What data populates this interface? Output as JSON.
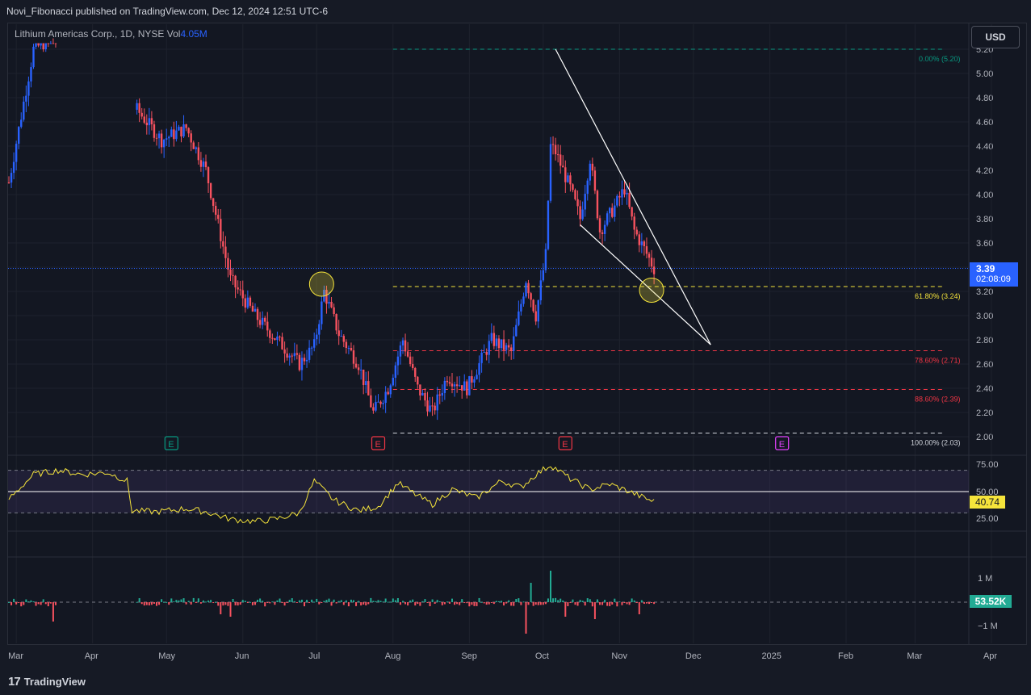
{
  "header": {
    "published": "Novi_Fibonacci published on TradingView.com, Dec 12, 2024 12:51 UTC-6"
  },
  "legend": {
    "symbol": "Lithium Americas Corp., 1D, NYSE",
    "vol_label": "Vol",
    "vol_value": "4.05M"
  },
  "currency_button": "USD",
  "price_tag": {
    "price": "3.39",
    "countdown": "02:08:09"
  },
  "rsi_tag": "40.74",
  "volume_tag": "53.52K",
  "brand": {
    "logo_text": "TradingView",
    "logo_mark": "17"
  },
  "colors": {
    "up": "#2962ff",
    "down": "#f7525f",
    "rsi": "#f5e43b",
    "vol_up": "#22ab94",
    "fib_top": "#089981",
    "fib_mid": "#f5e43b",
    "fib_red": "#f23645",
    "fib_bottom": "#d1d4dc"
  },
  "chart_data": [
    {
      "type": "candlestick",
      "title": "Lithium Americas Corp., 1D, NYSE",
      "ylim": [
        1.9,
        5.25
      ],
      "y_ticks": [
        "5.20",
        "5.00",
        "4.80",
        "4.60",
        "4.40",
        "4.20",
        "4.00",
        "3.80",
        "3.60",
        "3.40",
        "3.20",
        "3.00",
        "2.80",
        "2.60",
        "2.40",
        "2.20",
        "2.00"
      ],
      "x_ticks": [
        "Mar",
        "Apr",
        "May",
        "Jun",
        "Jul",
        "Aug",
        "Sep",
        "Oct",
        "Nov",
        "Dec",
        "2025",
        "Feb",
        "Mar",
        "Apr"
      ],
      "price_path": [
        {
          "day": 0,
          "price": 4.1
        },
        {
          "day": 10,
          "price": 5.2
        },
        {
          "day": 18,
          "price": 5.3
        },
        {
          "day": 52,
          "price": 4.7
        },
        {
          "day": 62,
          "price": 4.45
        },
        {
          "day": 72,
          "price": 4.55
        },
        {
          "day": 80,
          "price": 4.2
        },
        {
          "day": 90,
          "price": 3.3
        },
        {
          "day": 100,
          "price": 3.0
        },
        {
          "day": 108,
          "price": 2.82
        },
        {
          "day": 118,
          "price": 2.6
        },
        {
          "day": 124,
          "price": 2.75
        },
        {
          "day": 128,
          "price": 3.2
        },
        {
          "day": 134,
          "price": 2.85
        },
        {
          "day": 142,
          "price": 2.6
        },
        {
          "day": 148,
          "price": 2.2
        },
        {
          "day": 154,
          "price": 2.4
        },
        {
          "day": 160,
          "price": 2.8
        },
        {
          "day": 166,
          "price": 2.4
        },
        {
          "day": 172,
          "price": 2.2
        },
        {
          "day": 178,
          "price": 2.5
        },
        {
          "day": 186,
          "price": 2.4
        },
        {
          "day": 196,
          "price": 2.8
        },
        {
          "day": 204,
          "price": 2.7
        },
        {
          "day": 210,
          "price": 3.3
        },
        {
          "day": 214,
          "price": 3.0
        },
        {
          "day": 218,
          "price": 3.5
        },
        {
          "day": 220,
          "price": 4.4
        },
        {
          "day": 222,
          "price": 4.35
        },
        {
          "day": 228,
          "price": 4.05
        },
        {
          "day": 232,
          "price": 3.8
        },
        {
          "day": 236,
          "price": 4.3
        },
        {
          "day": 240,
          "price": 3.7
        },
        {
          "day": 246,
          "price": 3.9
        },
        {
          "day": 250,
          "price": 4.05
        },
        {
          "day": 254,
          "price": 3.7
        },
        {
          "day": 258,
          "price": 3.55
        },
        {
          "day": 262,
          "price": 3.39
        }
      ],
      "fib_levels": [
        {
          "label": "0.00% (5.20)",
          "value": 5.2
        },
        {
          "label": "61.80% (3.24)",
          "value": 3.24
        },
        {
          "label": "78.60% (2.71)",
          "value": 2.71
        },
        {
          "label": "88.60% (2.39)",
          "value": 2.39
        },
        {
          "label": "100.00% (2.03)",
          "value": 2.03
        }
      ],
      "last_price": 3.39,
      "earnings_markers": [
        {
          "label": "E",
          "day": 66,
          "kind": "past-positive"
        },
        {
          "label": "E",
          "day": 150,
          "kind": "past-negative"
        },
        {
          "label": "E",
          "day": 226,
          "kind": "past-negative"
        },
        {
          "label": "E",
          "day": 314,
          "kind": "upcoming"
        }
      ],
      "falling_wedge": {
        "upper": [
          {
            "day": 222,
            "price": 5.2
          },
          {
            "day": 285,
            "price": 2.76
          }
        ],
        "lower": [
          {
            "day": 232,
            "price": 3.75
          },
          {
            "day": 285,
            "price": 2.76
          }
        ]
      },
      "highlights": [
        {
          "day": 127,
          "price": 3.26
        },
        {
          "day": 261,
          "price": 3.21
        }
      ]
    },
    {
      "type": "line",
      "title": "RSI",
      "ylim": [
        20,
        80
      ],
      "y_ticks": [
        "75.00",
        "50.00",
        "25.00"
      ],
      "bands": [
        70,
        30
      ],
      "midline": 50,
      "last_value": 40.74,
      "path": [
        {
          "day": 0,
          "value": 43
        },
        {
          "day": 10,
          "value": 66
        },
        {
          "day": 20,
          "value": 70
        },
        {
          "day": 30,
          "value": 66
        },
        {
          "day": 40,
          "value": 68
        },
        {
          "day": 48,
          "value": 60
        },
        {
          "day": 50,
          "value": 32
        },
        {
          "day": 60,
          "value": 31
        },
        {
          "day": 72,
          "value": 34
        },
        {
          "day": 80,
          "value": 31
        },
        {
          "day": 90,
          "value": 24
        },
        {
          "day": 100,
          "value": 22
        },
        {
          "day": 108,
          "value": 24
        },
        {
          "day": 118,
          "value": 30
        },
        {
          "day": 124,
          "value": 60
        },
        {
          "day": 132,
          "value": 42
        },
        {
          "day": 142,
          "value": 32
        },
        {
          "day": 150,
          "value": 36
        },
        {
          "day": 158,
          "value": 58
        },
        {
          "day": 166,
          "value": 46
        },
        {
          "day": 172,
          "value": 38
        },
        {
          "day": 180,
          "value": 52
        },
        {
          "day": 190,
          "value": 44
        },
        {
          "day": 200,
          "value": 60
        },
        {
          "day": 208,
          "value": 54
        },
        {
          "day": 214,
          "value": 66
        },
        {
          "day": 220,
          "value": 75
        },
        {
          "day": 228,
          "value": 62
        },
        {
          "day": 236,
          "value": 52
        },
        {
          "day": 244,
          "value": 57
        },
        {
          "day": 252,
          "value": 50
        },
        {
          "day": 258,
          "value": 44
        },
        {
          "day": 262,
          "value": 40.74
        }
      ]
    },
    {
      "type": "bar",
      "title": "Volume delta",
      "ylim": [
        -1.6,
        1.6
      ],
      "y_ticks": [
        "1 M",
        "0",
        "−1 M"
      ],
      "last_value": "53.52K",
      "spikes": [
        {
          "day": 18,
          "value": -0.8
        },
        {
          "day": 50,
          "value": -1.0
        },
        {
          "day": 86,
          "value": -0.5
        },
        {
          "day": 90,
          "value": -0.6
        },
        {
          "day": 210,
          "value": -1.3
        },
        {
          "day": 212,
          "value": 0.8
        },
        {
          "day": 220,
          "value": 1.3
        },
        {
          "day": 226,
          "value": -0.6
        },
        {
          "day": 238,
          "value": -0.7
        },
        {
          "day": 256,
          "value": -0.5
        }
      ]
    }
  ]
}
